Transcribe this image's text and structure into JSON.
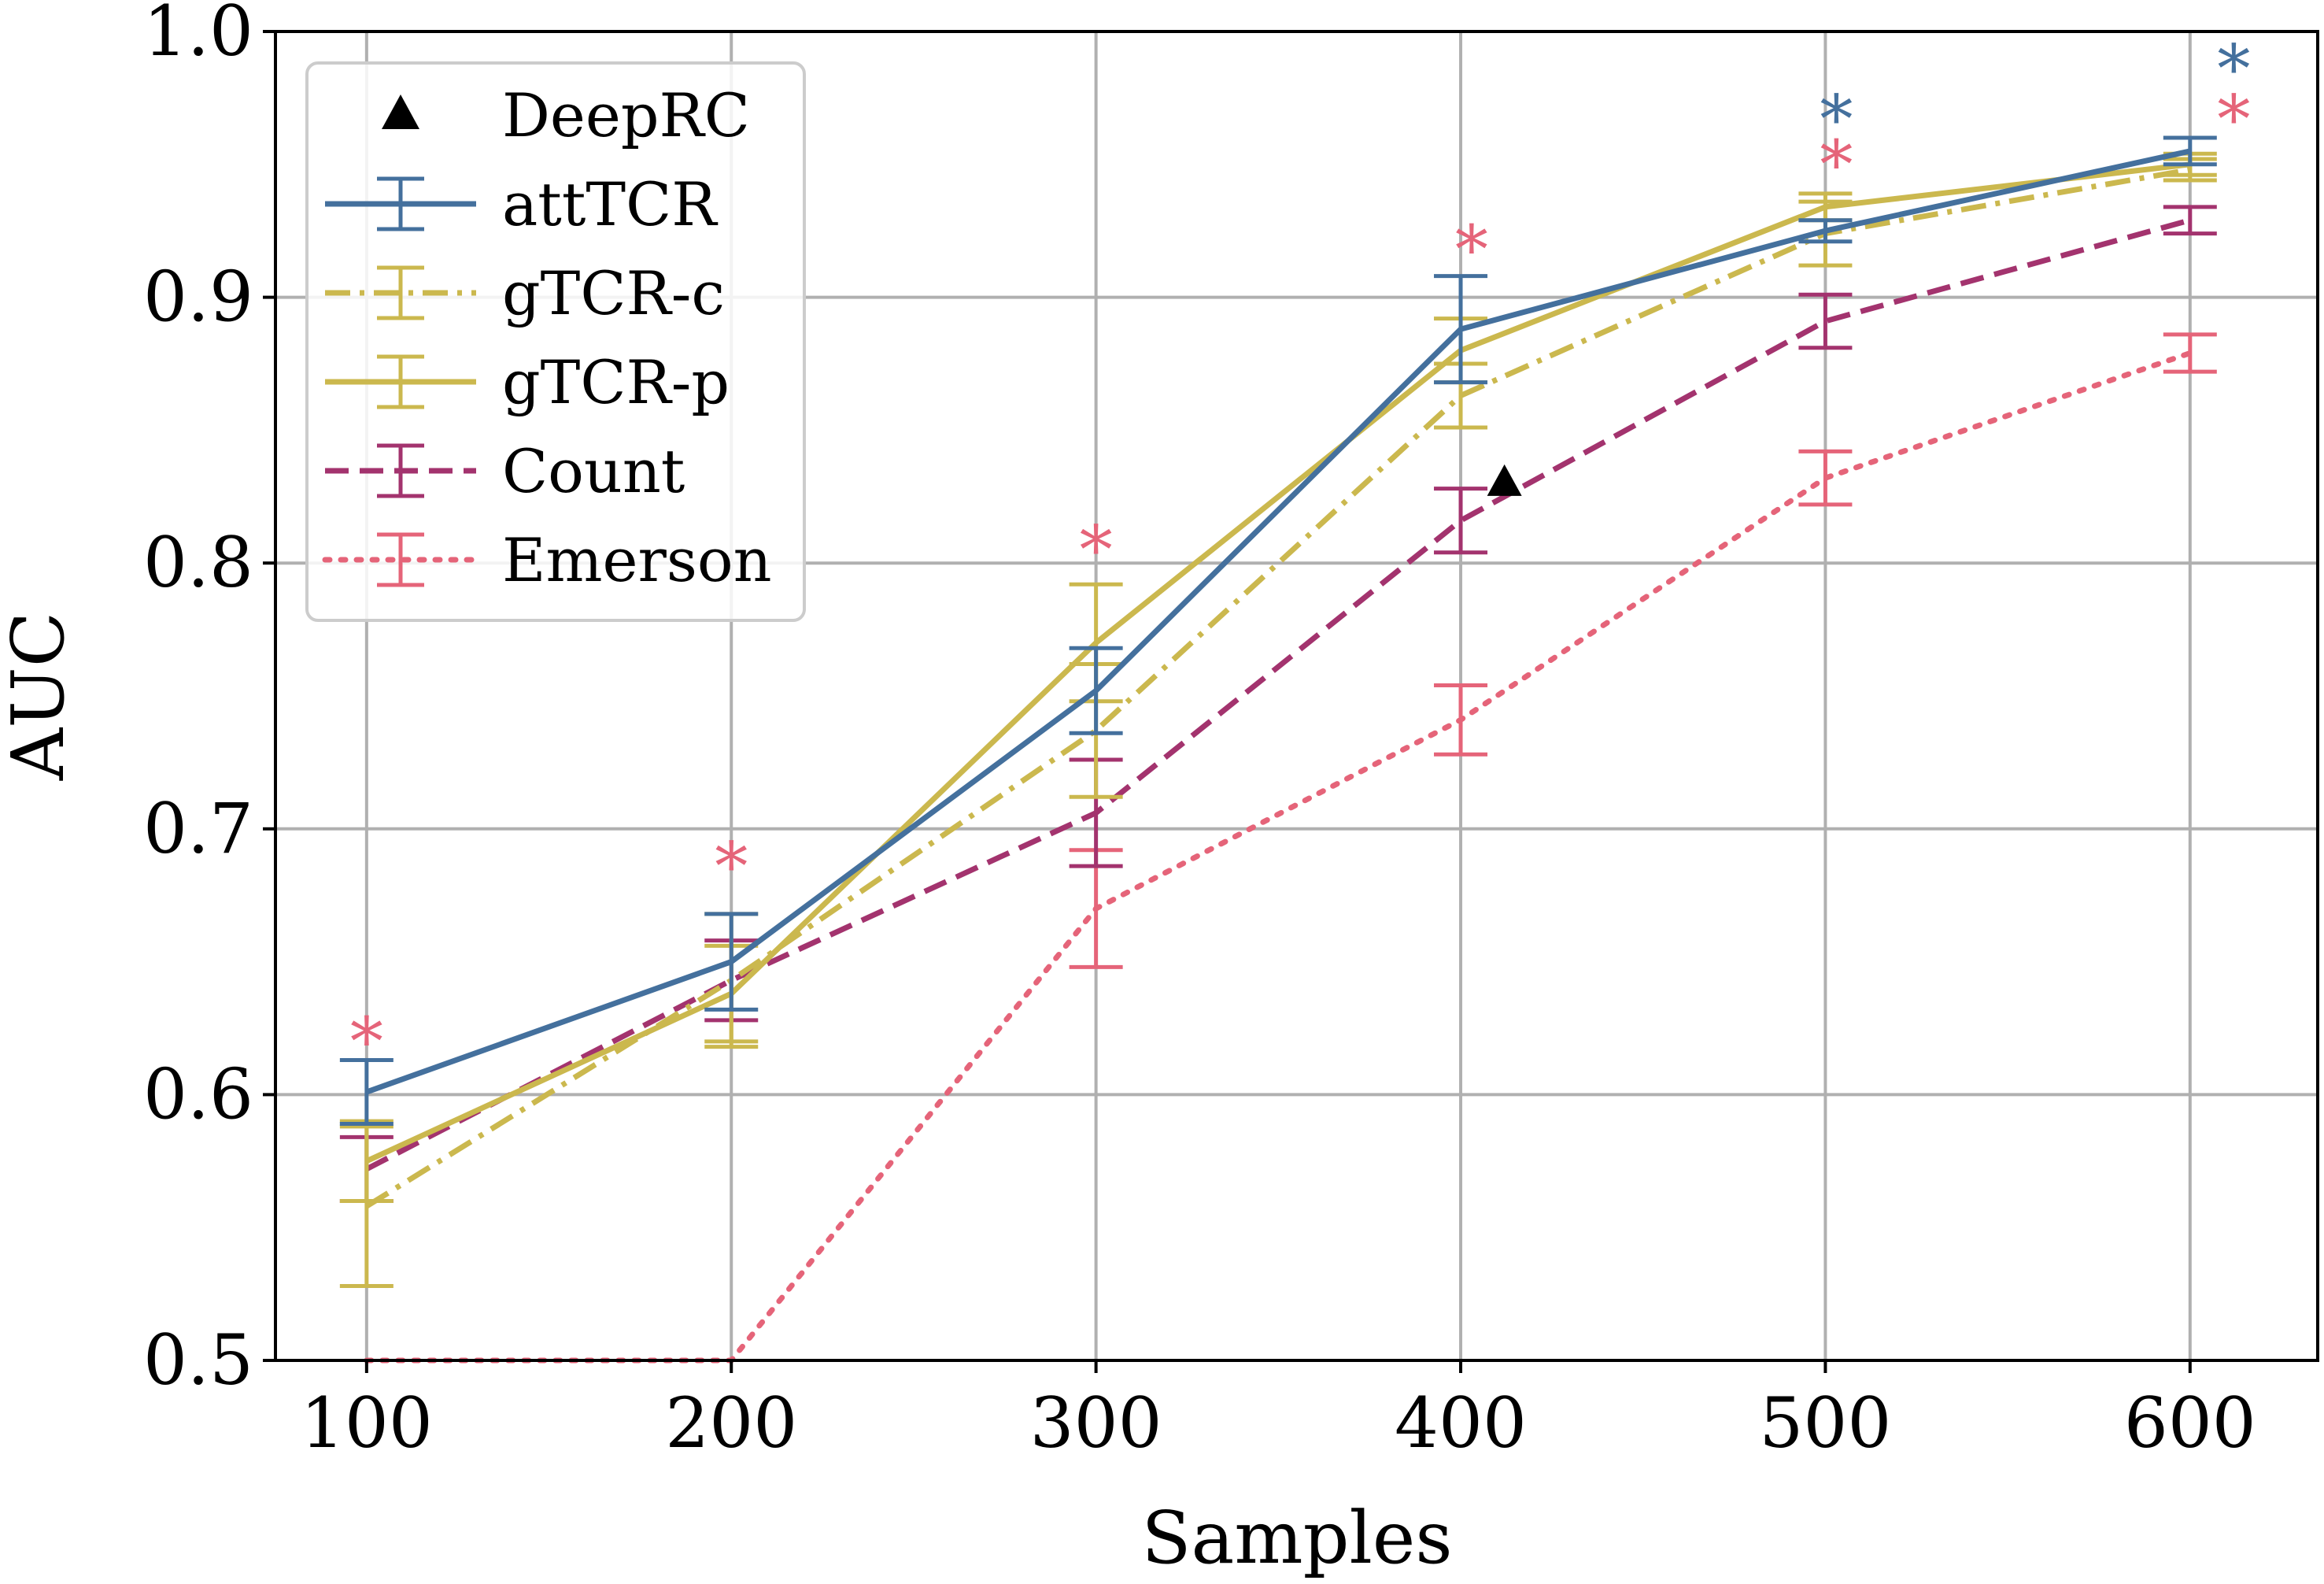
{
  "chart_data": {
    "type": "line",
    "title": "",
    "xlabel": "Samples",
    "ylabel": "AUC",
    "xlim": [
      75,
      635
    ],
    "ylim": [
      0.5,
      1.0
    ],
    "xticks": [
      100,
      200,
      300,
      400,
      500,
      600
    ],
    "xtick_labels": [
      "100",
      "200",
      "300",
      "400",
      "500",
      "600"
    ],
    "yticks": [
      0.5,
      0.6,
      0.7,
      0.8,
      0.9,
      1.0
    ],
    "ytick_labels": [
      "0.5",
      "0.6",
      "0.7",
      "0.8",
      "0.9",
      "1.0"
    ],
    "grid": true,
    "legend_position": "top-left",
    "legend": [
      "DeepRC",
      "attTCR",
      "gTCR-c",
      "gTCR-p",
      "Count",
      "Emerson"
    ],
    "series": [
      {
        "name": "attTCR",
        "color": "#44709d",
        "dash": "solid",
        "x": [
          100,
          200,
          300,
          400,
          500,
          600
        ],
        "y": [
          0.601,
          0.65,
          0.752,
          0.888,
          0.925,
          0.955
        ],
        "err": [
          0.012,
          0.018,
          0.016,
          0.02,
          0.004,
          0.005
        ]
      },
      {
        "name": "gTCR-c",
        "color": "#cbb84e",
        "dash": "dashdot",
        "x": [
          100,
          200,
          300,
          400,
          500,
          600
        ],
        "y": [
          0.558,
          0.643,
          0.737,
          0.863,
          0.924,
          0.948
        ],
        "err": [
          0.03,
          0.025,
          0.025,
          0.012,
          0.012,
          0.004
        ]
      },
      {
        "name": "gTCR-p",
        "color": "#cbb84e",
        "dash": "solid",
        "x": [
          100,
          200,
          300,
          400,
          500,
          600
        ],
        "y": [
          0.575,
          0.638,
          0.77,
          0.88,
          0.934,
          0.95
        ],
        "err": [
          0.015,
          0.018,
          0.022,
          0.012,
          0.005,
          0.004
        ]
      },
      {
        "name": "Count",
        "color": "#a3336e",
        "dash": "dashed",
        "x": [
          100,
          200,
          300,
          400,
          500,
          600
        ],
        "y": [
          0.572,
          0.643,
          0.706,
          0.816,
          0.891,
          0.929
        ],
        "err": [
          0.012,
          0.015,
          0.02,
          0.012,
          0.01,
          0.005
        ]
      },
      {
        "name": "Emerson",
        "color": "#e56479",
        "dash": "dotted",
        "x": [
          100,
          200,
          300,
          400,
          500,
          600
        ],
        "y": [
          0.5,
          0.5,
          0.67,
          0.741,
          0.832,
          0.879
        ],
        "err": [
          0,
          0,
          0.022,
          0.013,
          0.01,
          0.007
        ]
      }
    ],
    "markers": [
      {
        "name": "DeepRC",
        "color": "#000000",
        "shape": "triangle",
        "x": 412,
        "y": 0.83
      }
    ],
    "annotations": [
      {
        "text": "*",
        "color": "#e56479",
        "x": 100,
        "y": 0.622
      },
      {
        "text": "*",
        "color": "#e56479",
        "x": 200,
        "y": 0.688
      },
      {
        "text": "*",
        "color": "#e56479",
        "x": 300,
        "y": 0.807
      },
      {
        "text": "*",
        "color": "#e56479",
        "x": 403,
        "y": 0.92
      },
      {
        "text": "*",
        "color": "#44709d",
        "x": 503,
        "y": 0.969
      },
      {
        "text": "*",
        "color": "#e56479",
        "x": 503,
        "y": 0.952
      },
      {
        "text": "*",
        "color": "#44709d",
        "x": 612,
        "y": 0.988
      },
      {
        "text": "*",
        "color": "#e56479",
        "x": 612,
        "y": 0.969
      }
    ]
  }
}
